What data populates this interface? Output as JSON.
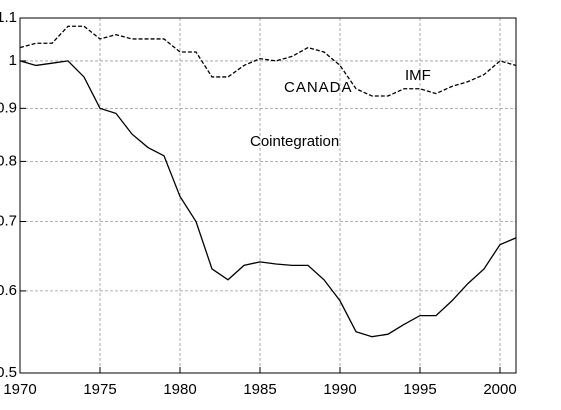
{
  "chart_data": {
    "type": "line",
    "annotations": [
      "CANADA"
    ],
    "x": [
      1970,
      1971,
      1972,
      1973,
      1974,
      1975,
      1976,
      1977,
      1978,
      1979,
      1980,
      1981,
      1982,
      1983,
      1984,
      1985,
      1986,
      1987,
      1988,
      1989,
      1990,
      1991,
      1992,
      1993,
      1994,
      1995,
      1996,
      1997,
      1998,
      1999,
      2000,
      2001
    ],
    "series": [
      {
        "name": "IMF",
        "color": "#000000",
        "dash": true,
        "values": [
          1.03,
          1.04,
          1.04,
          1.08,
          1.08,
          1.05,
          1.06,
          1.05,
          1.05,
          1.05,
          1.02,
          1.02,
          0.965,
          0.965,
          0.99,
          1.005,
          1.0,
          1.01,
          1.03,
          1.02,
          0.99,
          0.94,
          0.925,
          0.925,
          0.94,
          0.94,
          0.93,
          0.945,
          0.955,
          0.97,
          1.0,
          0.99
        ]
      },
      {
        "name": "Cointegration",
        "color": "#000000",
        "dash": false,
        "values": [
          1.0,
          0.99,
          0.995,
          1.0,
          0.965,
          0.9,
          0.89,
          0.85,
          0.825,
          0.81,
          0.74,
          0.7,
          0.63,
          0.615,
          0.635,
          0.64,
          0.637,
          0.635,
          0.635,
          0.615,
          0.587,
          0.548,
          0.542,
          0.545,
          0.557,
          0.568,
          0.568,
          0.587,
          0.61,
          0.63,
          0.665,
          0.675
        ]
      }
    ],
    "xlim": [
      1970,
      2001
    ],
    "xticks": [
      1970,
      1975,
      1980,
      1985,
      1990,
      1995,
      2000
    ],
    "ylim": [
      0.5,
      1.1
    ],
    "yticks": [
      0.5,
      0.6,
      0.7,
      0.8,
      0.9,
      1.0,
      1.1
    ],
    "log_y": true,
    "grid": true
  }
}
